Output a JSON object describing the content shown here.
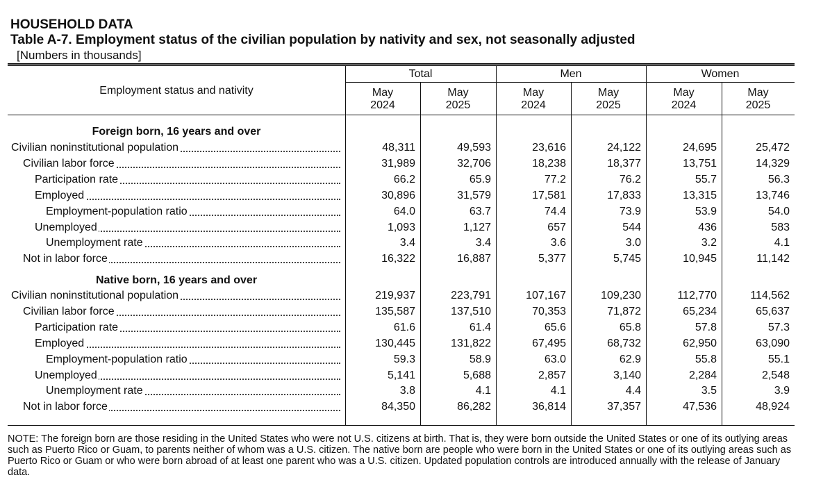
{
  "header": {
    "kicker": "HOUSEHOLD DATA",
    "title": "Table A-7. Employment status of the civilian population by nativity and sex, not seasonally adjusted",
    "subtitle": "[Numbers in thousands]"
  },
  "columns": {
    "stub": "Employment status and nativity",
    "groups": [
      "Total",
      "Men",
      "Women"
    ],
    "periods": [
      {
        "month": "May",
        "year": "2024"
      },
      {
        "month": "May",
        "year": "2025"
      },
      {
        "month": "May",
        "year": "2024"
      },
      {
        "month": "May",
        "year": "2025"
      },
      {
        "month": "May",
        "year": "2024"
      },
      {
        "month": "May",
        "year": "2025"
      }
    ]
  },
  "sections": [
    {
      "title": "Foreign born, 16 years and over",
      "rows": [
        {
          "label": "Civilian noninstitutional population",
          "indent": 0,
          "values": [
            "48,311",
            "49,593",
            "23,616",
            "24,122",
            "24,695",
            "25,472"
          ]
        },
        {
          "label": "Civilian labor force",
          "indent": 1,
          "values": [
            "31,989",
            "32,706",
            "18,238",
            "18,377",
            "13,751",
            "14,329"
          ]
        },
        {
          "label": "Participation rate",
          "indent": 2,
          "values": [
            "66.2",
            "65.9",
            "77.2",
            "76.2",
            "55.7",
            "56.3"
          ]
        },
        {
          "label": "Employed",
          "indent": 2,
          "values": [
            "30,896",
            "31,579",
            "17,581",
            "17,833",
            "13,315",
            "13,746"
          ]
        },
        {
          "label": "Employment-population ratio",
          "indent": 3,
          "values": [
            "64.0",
            "63.7",
            "74.4",
            "73.9",
            "53.9",
            "54.0"
          ]
        },
        {
          "label": "Unemployed",
          "indent": 2,
          "values": [
            "1,093",
            "1,127",
            "657",
            "544",
            "436",
            "583"
          ]
        },
        {
          "label": "Unemployment rate",
          "indent": 3,
          "values": [
            "3.4",
            "3.4",
            "3.6",
            "3.0",
            "3.2",
            "4.1"
          ]
        },
        {
          "label": "Not in labor force",
          "indent": 1,
          "values": [
            "16,322",
            "16,887",
            "5,377",
            "5,745",
            "10,945",
            "11,142"
          ]
        }
      ]
    },
    {
      "title": "Native born, 16 years and over",
      "rows": [
        {
          "label": "Civilian noninstitutional population",
          "indent": 0,
          "values": [
            "219,937",
            "223,791",
            "107,167",
            "109,230",
            "112,770",
            "114,562"
          ]
        },
        {
          "label": "Civilian labor force",
          "indent": 1,
          "values": [
            "135,587",
            "137,510",
            "70,353",
            "71,872",
            "65,234",
            "65,637"
          ]
        },
        {
          "label": "Participation rate",
          "indent": 2,
          "values": [
            "61.6",
            "61.4",
            "65.6",
            "65.8",
            "57.8",
            "57.3"
          ]
        },
        {
          "label": "Employed",
          "indent": 2,
          "values": [
            "130,445",
            "131,822",
            "67,495",
            "68,732",
            "62,950",
            "63,090"
          ]
        },
        {
          "label": "Employment-population ratio",
          "indent": 3,
          "values": [
            "59.3",
            "58.9",
            "63.0",
            "62.9",
            "55.8",
            "55.1"
          ]
        },
        {
          "label": "Unemployed",
          "indent": 2,
          "values": [
            "5,141",
            "5,688",
            "2,857",
            "3,140",
            "2,284",
            "2,548"
          ]
        },
        {
          "label": "Unemployment rate",
          "indent": 3,
          "values": [
            "3.8",
            "4.1",
            "4.1",
            "4.4",
            "3.5",
            "3.9"
          ]
        },
        {
          "label": "Not in labor force",
          "indent": 1,
          "values": [
            "84,350",
            "86,282",
            "36,814",
            "37,357",
            "47,536",
            "48,924"
          ]
        }
      ]
    }
  ],
  "note": "NOTE: The foreign born are those residing in the United States who were not U.S. citizens at birth. That is, they were born outside the United States or one of its outlying areas such as Puerto Rico or Guam, to parents neither of whom was a U.S. citizen. The native born are people who were born in the United States or one of its outlying areas such as Puerto Rico or Guam or who were born abroad of at least one parent who was a U.S. citizen. Updated population controls are introduced annually with the release of January data."
}
